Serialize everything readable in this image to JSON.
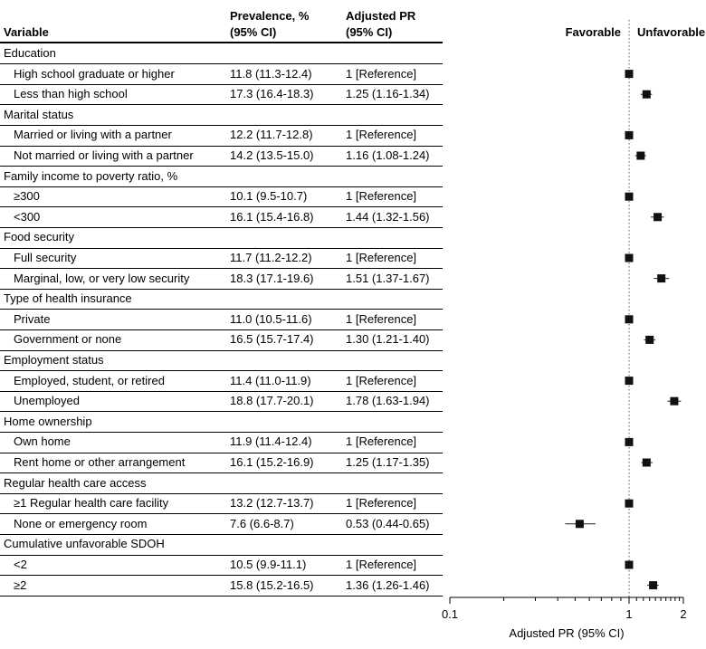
{
  "headers": {
    "variable": "Variable",
    "prevalence": [
      "Prevalence, %",
      "(95% CI)"
    ],
    "adjusted_pr": [
      "Adjusted PR",
      "(95% CI)"
    ]
  },
  "direction": {
    "left": "Favorable",
    "right": "Unfavorable"
  },
  "chart_data": {
    "type": "forest",
    "x_scale": "log",
    "xlim": [
      0.1,
      2
    ],
    "xticks": [
      {
        "value": 0.1,
        "label": "0.1"
      },
      {
        "value": 1,
        "label": "1"
      },
      {
        "value": 2,
        "label": "2"
      }
    ],
    "reference_line": 1,
    "xlabel": "Adjusted PR (95% CI)",
    "groups": [
      {
        "label": "Education",
        "items": [
          {
            "label": "High school graduate or higher",
            "prevalence": "11.8 (11.3-12.4)",
            "pr_text": "1 [Reference]",
            "pr": 1,
            "lo": 1,
            "hi": 1
          },
          {
            "label": "Less than high school",
            "prevalence": "17.3 (16.4-18.3)",
            "pr_text": "1.25 (1.16-1.34)",
            "pr": 1.25,
            "lo": 1.16,
            "hi": 1.34
          }
        ]
      },
      {
        "label": "Marital status",
        "items": [
          {
            "label": "Married or living with a partner",
            "prevalence": "12.2 (11.7-12.8)",
            "pr_text": "1 [Reference]",
            "pr": 1,
            "lo": 1,
            "hi": 1
          },
          {
            "label": "Not married or living with a partner",
            "prevalence": "14.2 (13.5-15.0)",
            "pr_text": "1.16 (1.08-1.24)",
            "pr": 1.16,
            "lo": 1.08,
            "hi": 1.24
          }
        ]
      },
      {
        "label": "Family income to poverty ratio, %",
        "items": [
          {
            "label": "≥300",
            "prevalence": "10.1 (9.5-10.7)",
            "pr_text": "1 [Reference]",
            "pr": 1,
            "lo": 1,
            "hi": 1
          },
          {
            "label": "<300",
            "prevalence": "16.1 (15.4-16.8)",
            "pr_text": "1.44 (1.32-1.56)",
            "pr": 1.44,
            "lo": 1.32,
            "hi": 1.56
          }
        ]
      },
      {
        "label": "Food security",
        "items": [
          {
            "label": "Full security",
            "prevalence": "11.7 (11.2-12.2)",
            "pr_text": "1 [Reference]",
            "pr": 1,
            "lo": 1,
            "hi": 1
          },
          {
            "label": "Marginal, low, or very low security",
            "prevalence": "18.3 (17.1-19.6)",
            "pr_text": "1.51 (1.37-1.67)",
            "pr": 1.51,
            "lo": 1.37,
            "hi": 1.67
          }
        ]
      },
      {
        "label": "Type of health insurance",
        "items": [
          {
            "label": "Private",
            "prevalence": "11.0 (10.5-11.6)",
            "pr_text": "1 [Reference]",
            "pr": 1,
            "lo": 1,
            "hi": 1
          },
          {
            "label": "Government or none",
            "prevalence": "16.5 (15.7-17.4)",
            "pr_text": "1.30 (1.21-1.40)",
            "pr": 1.3,
            "lo": 1.21,
            "hi": 1.4
          }
        ]
      },
      {
        "label": "Employment status",
        "items": [
          {
            "label": "Employed, student, or retired",
            "prevalence": "11.4 (11.0-11.9)",
            "pr_text": "1 [Reference]",
            "pr": 1,
            "lo": 1,
            "hi": 1
          },
          {
            "label": "Unemployed",
            "prevalence": "18.8 (17.7-20.1)",
            "pr_text": "1.78 (1.63-1.94)",
            "pr": 1.78,
            "lo": 1.63,
            "hi": 1.94
          }
        ]
      },
      {
        "label": "Home ownership",
        "items": [
          {
            "label": "Own home",
            "prevalence": "11.9 (11.4-12.4)",
            "pr_text": "1 [Reference]",
            "pr": 1,
            "lo": 1,
            "hi": 1
          },
          {
            "label": "Rent home or other arrangement",
            "prevalence": "16.1 (15.2-16.9)",
            "pr_text": "1.25 (1.17-1.35)",
            "pr": 1.25,
            "lo": 1.17,
            "hi": 1.35
          }
        ]
      },
      {
        "label": "Regular health care access",
        "items": [
          {
            "label": "≥1 Regular health care facility",
            "prevalence": "13.2 (12.7-13.7)",
            "pr_text": "1 [Reference]",
            "pr": 1,
            "lo": 1,
            "hi": 1
          },
          {
            "label": "None or emergency room",
            "prevalence": "7.6 (6.6-8.7)",
            "pr_text": "0.53 (0.44-0.65)",
            "pr": 0.53,
            "lo": 0.44,
            "hi": 0.65
          }
        ]
      },
      {
        "label": "Cumulative unfavorable SDOH",
        "items": [
          {
            "label": "<2",
            "prevalence": "10.5 (9.9-11.1)",
            "pr_text": "1 [Reference]",
            "pr": 1,
            "lo": 1,
            "hi": 1
          },
          {
            "label": "≥2",
            "prevalence": "15.8 (15.2-16.5)",
            "pr_text": "1.36 (1.26-1.46)",
            "pr": 1.36,
            "lo": 1.26,
            "hi": 1.46
          }
        ]
      }
    ]
  }
}
